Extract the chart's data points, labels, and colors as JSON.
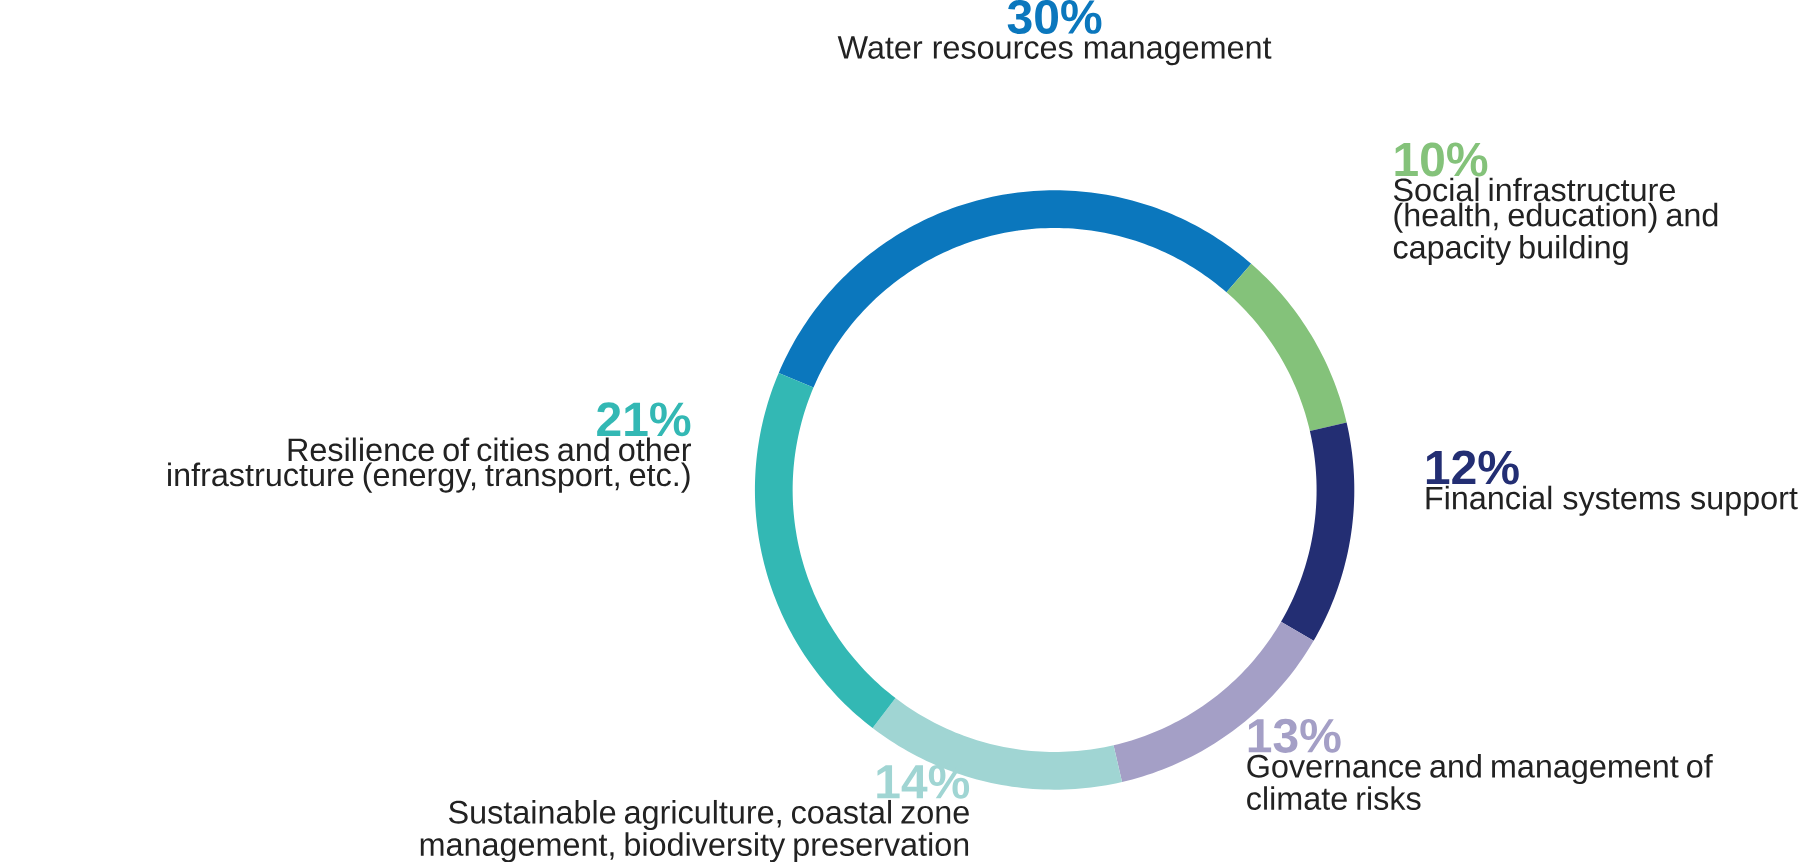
{
  "chart_data": {
    "type": "donut",
    "categories": [
      "Water resources management",
      "Social infrastructure (health, education) and capacity building",
      "Financial systems support",
      "Governance and management of climate risks",
      "Sustainable agriculture, coastal zone management, biodiversity preservation",
      "Resilience of cities and other infrastructure (energy, transport, etc.)"
    ],
    "values": [
      30,
      10,
      12,
      13,
      14,
      21
    ],
    "value_labels": [
      "30%",
      "10%",
      "12%",
      "13%",
      "14%",
      "21%"
    ],
    "colors": [
      "#0b77bd",
      "#84c27a",
      "#232e73",
      "#a49fc6",
      "#a0d5d3",
      "#33b8b4"
    ]
  }
}
